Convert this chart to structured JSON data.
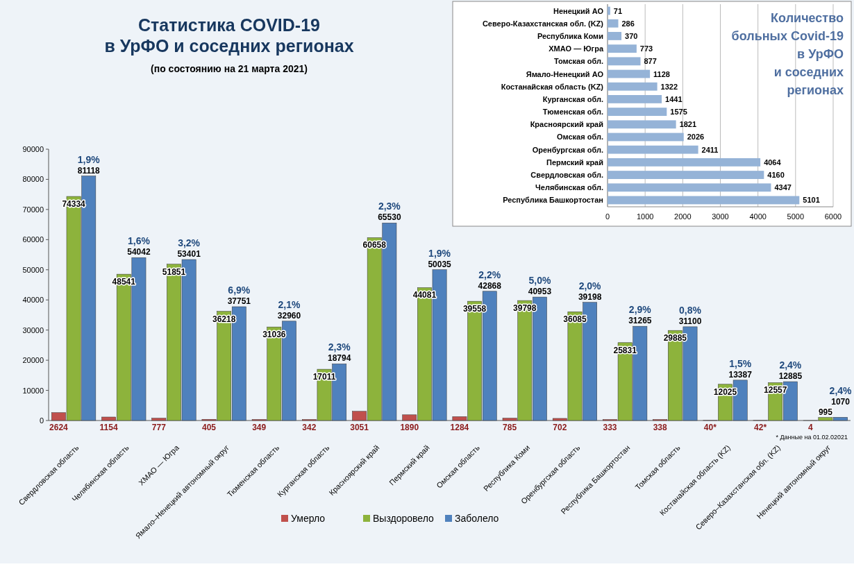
{
  "chart_data": [
    {
      "type": "bar",
      "title": "Статистика COVID-19\nв УрФО и соседних регионах",
      "subtitle": "(по состоянию на 21 марта 2021)",
      "categories": [
        "Свердловская область",
        "Челябинская область",
        "ХМАО — Югра",
        "Ямало–Ненецкий автономный округ",
        "Тюменская область",
        "Курганская область",
        "Красноярский край",
        "Пермский край",
        "Омская область",
        "Республика Коми",
        "Оренбургская область",
        "Республика Башкортостан",
        "Томская область",
        "Костанайская область (KZ)",
        "Северо–Казахстанская обл. (KZ)",
        "Ненецкий автономный округ"
      ],
      "series": [
        {
          "name": "Заболело",
          "color": "#4f81bd",
          "values": [
            81118,
            54042,
            53401,
            37751,
            32960,
            18794,
            65530,
            50035,
            42868,
            40953,
            39198,
            31265,
            31100,
            13387,
            12885,
            1070
          ]
        },
        {
          "name": "Выздоровело",
          "color": "#8db33c",
          "values": [
            74334,
            48541,
            51851,
            36218,
            31036,
            17011,
            60658,
            44081,
            39558,
            39798,
            36085,
            25831,
            29885,
            12025,
            12557,
            995
          ]
        },
        {
          "name": "Умерло",
          "color": "#c0504d",
          "values": [
            2624,
            1154,
            777,
            405,
            349,
            342,
            3051,
            1890,
            1284,
            785,
            702,
            333,
            338,
            40,
            42,
            4
          ],
          "value_labels": [
            "2624",
            "1154",
            "777",
            "405",
            "349",
            "342",
            "3051",
            "1890",
            "1284",
            "785",
            "702",
            "333",
            "338",
            "40*",
            "42*",
            "4"
          ]
        }
      ],
      "ylim": [
        0,
        90000
      ],
      "yticks": [
        0,
        10000,
        20000,
        30000,
        40000,
        50000,
        60000,
        70000,
        80000,
        90000
      ],
      "grid": false,
      "legend": "bottom",
      "data_labels": true,
      "annotations": [
        "1,9%",
        "1,6%",
        "3,2%",
        "6,9%",
        "2,1%",
        "2,3%",
        "2,3%",
        "1,9%",
        "2,2%",
        "5,0%",
        "2,0%",
        "2,9%",
        "0,8%",
        "1,5%",
        "2,4%",
        "2,4%",
        "* Данные на 01.02.02021"
      ]
    },
    {
      "type": "bar",
      "orientation": "horizontal",
      "title": "Количество\nбольных Covid-19\nв УрФО\nи соседних\nрегионах",
      "categories": [
        "Ненецкий АО",
        "Северо-Казахстанская обл. (KZ)",
        "Республика Коми",
        "ХМАО — Югра",
        "Томская обл.",
        "Ямало-Ненецкий АО",
        "Костанайская область (KZ)",
        "Курганская обл.",
        "Тюменская обл.",
        "Красноярский край",
        "Омская обл.",
        "Оренбургская обл.",
        "Пермский край",
        "Свердловская обл.",
        "Челябинская обл.",
        "Республика Башкортостан"
      ],
      "values": [
        71,
        286,
        370,
        773,
        877,
        1128,
        1322,
        1441,
        1575,
        1821,
        2026,
        2411,
        4064,
        4160,
        4347,
        5101
      ],
      "color": "#95b3d7",
      "xlim": [
        0,
        6000
      ],
      "xticks": [
        0,
        1000,
        2000,
        3000,
        4000,
        5000,
        6000
      ],
      "grid": "x",
      "data_labels": true
    }
  ]
}
